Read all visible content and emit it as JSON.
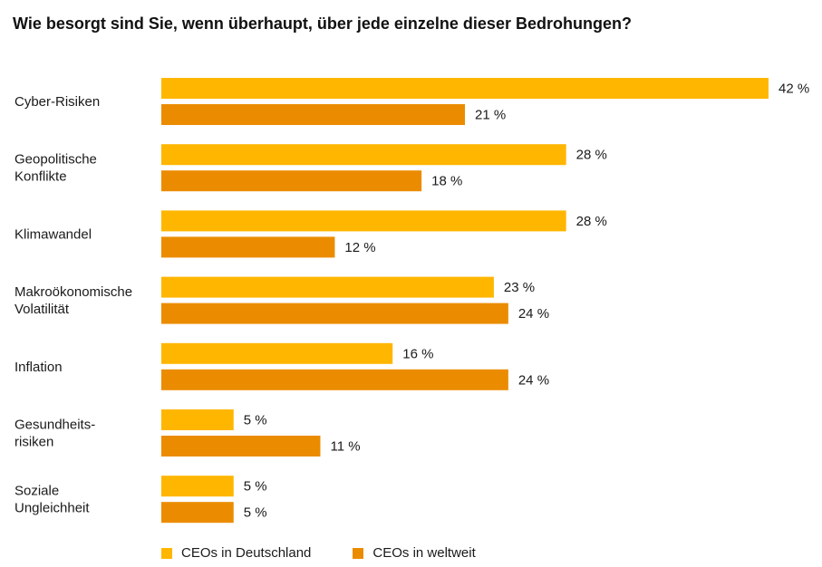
{
  "colors": {
    "deutschland": "#FFB600",
    "weltweit": "#EB8C00"
  },
  "chart_data": {
    "type": "bar",
    "orientation": "horizontal",
    "title": "Wie besorgt sind Sie, wenn überhaupt, über jede einzelne dieser Bedrohungen?",
    "categories": [
      [
        "Cyber-Risiken"
      ],
      [
        "Geopolitische",
        "Konflikte"
      ],
      [
        "Klimawandel"
      ],
      [
        "Makroökonomische",
        "Volatilität"
      ],
      [
        "Inflation"
      ],
      [
        "Gesundheits-",
        "risiken"
      ],
      [
        "Soziale",
        "Ungleichheit"
      ]
    ],
    "series": [
      {
        "name": "CEOs in Deutschland",
        "values": [
          42,
          28,
          28,
          23,
          16,
          5,
          5
        ]
      },
      {
        "name": "CEOs in weltweit",
        "values": [
          21,
          18,
          12,
          24,
          24,
          11,
          5
        ]
      }
    ],
    "value_suffix": " %",
    "xlim": [
      0,
      42
    ],
    "legend_position": "bottom-left",
    "grid": false
  }
}
